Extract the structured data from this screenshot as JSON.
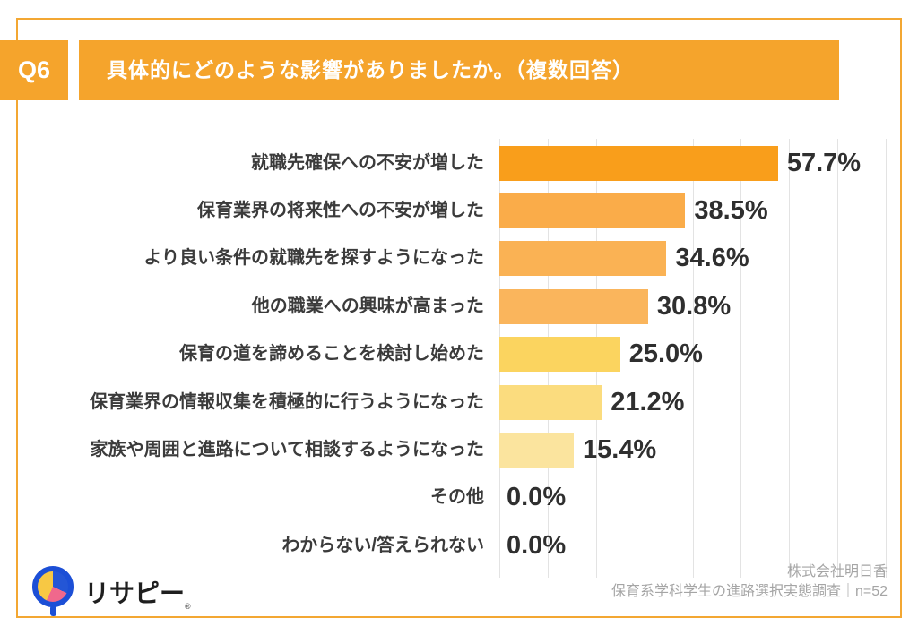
{
  "header": {
    "question_tag": "Q6",
    "title": "具体的にどのような影響がありましたか。（複数回答）"
  },
  "chart_data": {
    "type": "bar",
    "orientation": "horizontal",
    "title": "具体的にどのような影響がありましたか。（複数回答）",
    "categories": [
      "就職先確保への不安が増した",
      "保育業界の将来性への不安が増した",
      "より良い条件の就職先を探すようになった",
      "他の職業への興味が高まった",
      "保育の道を諦めることを検討し始めた",
      "保育業界の情報収集を積極的に行うようになった",
      "家族や周囲と進路について相談するようになった",
      "その他",
      "わからない/答えられない"
    ],
    "values": [
      57.7,
      38.5,
      34.6,
      30.8,
      25.0,
      21.2,
      15.4,
      0.0,
      0.0
    ],
    "unit": "%",
    "xlim": [
      0,
      80
    ],
    "gridline_interval_pct": 10,
    "grid": true,
    "legend": false,
    "bar_colors": [
      "#F99E1B",
      "#FAAC49",
      "#FAB254",
      "#FAB55C",
      "#FBD45F",
      "#FBDC7E",
      "#FBE49E",
      null,
      null
    ]
  },
  "footer": {
    "company": "株式会社明日香",
    "survey_note": "保育系学科学生の進路選択実態調査｜n=52"
  },
  "logo": {
    "text": "リサピー",
    "mark": "®"
  },
  "colors": {
    "accent_orange": "#F5A42C",
    "frame_border": "#F3A732",
    "grid": "#E3E3E3",
    "label_text": "#3B3B3B",
    "value_text": "#2F2F2F",
    "footer_text": "#A5A5A5",
    "logo_blue": "#1C4FD6"
  }
}
